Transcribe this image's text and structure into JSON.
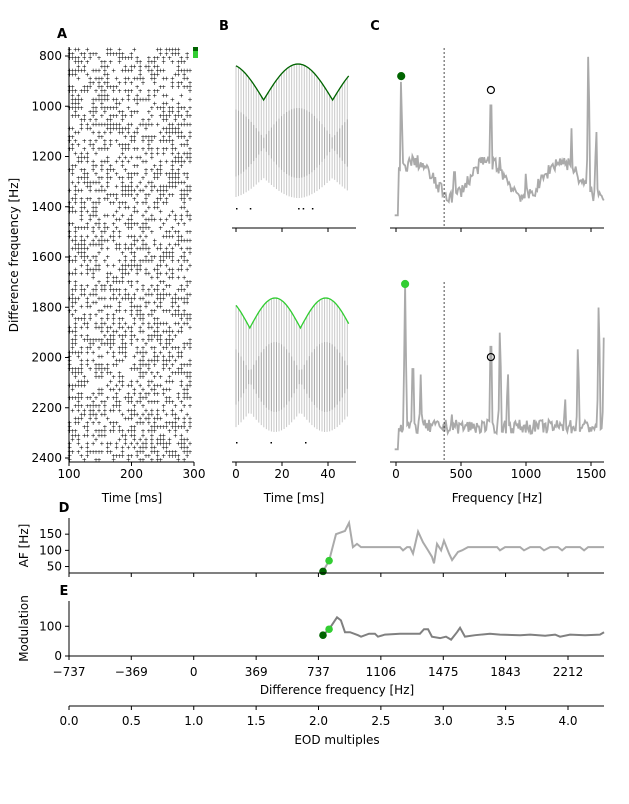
{
  "chart_data": [
    {
      "panel": "A",
      "type": "scatter",
      "xlabel": "Time [ms]",
      "ylabel": "Difference frequency [Hz]",
      "xlim": [
        100,
        300
      ],
      "ylim": [
        2420,
        770
      ],
      "xticks": [
        "100",
        "200",
        "300"
      ],
      "yticks": [
        "800",
        "1000",
        "1200",
        "1400",
        "1600",
        "1800",
        "2000",
        "2200",
        "2400"
      ],
      "marker_colors": [
        "#006400",
        "#32cd32"
      ]
    },
    {
      "panel": "B",
      "type": "line",
      "xlabel": "Time [ms]",
      "xlim": [
        -3,
        50
      ],
      "xticks": [
        "0",
        "20",
        "40"
      ],
      "envelope_colors": [
        "#006400",
        "#32cd32"
      ]
    },
    {
      "panel": "C",
      "type": "line",
      "xlabel": "Frequency [Hz]",
      "xlim": [
        -40,
        1600
      ],
      "xticks": [
        "0",
        "500",
        "1000",
        "1500"
      ],
      "dashed_line_x": 370,
      "top_spectrum_peaks": [
        [
          40,
          0.85
        ],
        [
          150,
          0.3
        ],
        [
          450,
          0.35
        ],
        [
          730,
          0.8
        ],
        [
          800,
          0.4
        ],
        [
          1000,
          0.3
        ],
        [
          1350,
          0.55
        ],
        [
          1480,
          1.0
        ],
        [
          1540,
          0.55
        ]
      ],
      "top_markers": [
        {
          "x": 40,
          "y": 0.85,
          "color": "#006400"
        },
        {
          "x": 730,
          "y": 0.77,
          "color": "none"
        }
      ],
      "bottom_spectrum_peaks": [
        [
          70,
          1.0
        ],
        [
          130,
          0.6
        ],
        [
          190,
          0.48
        ],
        [
          430,
          0.25
        ],
        [
          730,
          0.75
        ],
        [
          800,
          0.75
        ],
        [
          860,
          0.5
        ],
        [
          1300,
          0.35
        ],
        [
          1400,
          0.65
        ],
        [
          1560,
          0.9
        ],
        [
          1600,
          0.72
        ]
      ],
      "bottom_markers": [
        {
          "x": 70,
          "y": 1.0,
          "color": "#32cd32"
        },
        {
          "x": 730,
          "y": 0.58,
          "color": "none"
        }
      ]
    },
    {
      "panel": "D",
      "type": "line",
      "ylabel": "AF [Hz]",
      "xlim": [
        -737,
        2425
      ],
      "ylim": [
        30,
        200
      ],
      "yticks": [
        50,
        100,
        150
      ],
      "x": [
        764,
        800,
        841,
        894,
        918,
        941,
        965,
        989,
        1219,
        1237,
        1261,
        1278,
        1296,
        1326,
        1355,
        1385,
        1408,
        1420,
        1438,
        1462,
        1479,
        1509,
        1527,
        1562,
        1586,
        1621,
        1793,
        1810,
        1840,
        1929,
        1952,
        1988,
        2047,
        2070,
        2106,
        2153,
        2177,
        2200,
        2283,
        2307,
        2331,
        2425
      ],
      "y": [
        35,
        68,
        150,
        160,
        185,
        110,
        120,
        110,
        110,
        100,
        110,
        110,
        90,
        158,
        125,
        100,
        80,
        60,
        120,
        100,
        130,
        90,
        70,
        95,
        100,
        110,
        110,
        100,
        110,
        110,
        100,
        110,
        110,
        100,
        110,
        110,
        100,
        110,
        110,
        100,
        110,
        110
      ],
      "markers": [
        {
          "x": 764,
          "y": 35,
          "color": "#006400"
        },
        {
          "x": 800,
          "y": 68,
          "color": "#32cd32"
        }
      ],
      "line_color": "#aaaaaa"
    },
    {
      "panel": "E",
      "type": "line",
      "ylabel": "Modulation",
      "xlabel": "Difference frequency [Hz]",
      "xlim": [
        -737,
        2425
      ],
      "ylim": [
        0,
        185
      ],
      "yticks": [
        0,
        100
      ],
      "xticks": [
        "−737",
        "−369",
        "0",
        "369",
        "737",
        "1106",
        "1475",
        "1843",
        "2212"
      ],
      "xtick_values": [
        -737,
        -369,
        0,
        369,
        737,
        1106,
        1475,
        1843,
        2212
      ],
      "x": [
        764,
        800,
        847,
        870,
        894,
        924,
        971,
        989,
        1036,
        1071,
        1089,
        1130,
        1219,
        1337,
        1361,
        1385,
        1408,
        1456,
        1491,
        1521,
        1556,
        1574,
        1603,
        1663,
        1751,
        1810,
        1929,
        1988,
        2077,
        2136,
        2165,
        2224,
        2313,
        2401,
        2425
      ],
      "y": [
        70,
        90,
        130,
        120,
        80,
        80,
        70,
        65,
        75,
        75,
        65,
        72,
        75,
        75,
        90,
        90,
        65,
        60,
        65,
        55,
        80,
        95,
        65,
        70,
        75,
        72,
        70,
        72,
        68,
        72,
        65,
        72,
        70,
        72,
        80
      ],
      "markers": [
        {
          "x": 764,
          "y": 70,
          "color": "#006400"
        },
        {
          "x": 800,
          "y": 90,
          "color": "#32cd32"
        }
      ],
      "line_color": "#808080"
    },
    {
      "panel": "EOD",
      "type": "axis",
      "xlabel": "EOD multiples",
      "xlim": [
        0,
        4.29
      ],
      "xticks": [
        "0.0",
        "0.5",
        "1.0",
        "1.5",
        "2.0",
        "2.5",
        "3.0",
        "3.5",
        "4.0"
      ]
    }
  ],
  "panel_labels": [
    "A",
    "B",
    "C",
    "D",
    "E"
  ]
}
